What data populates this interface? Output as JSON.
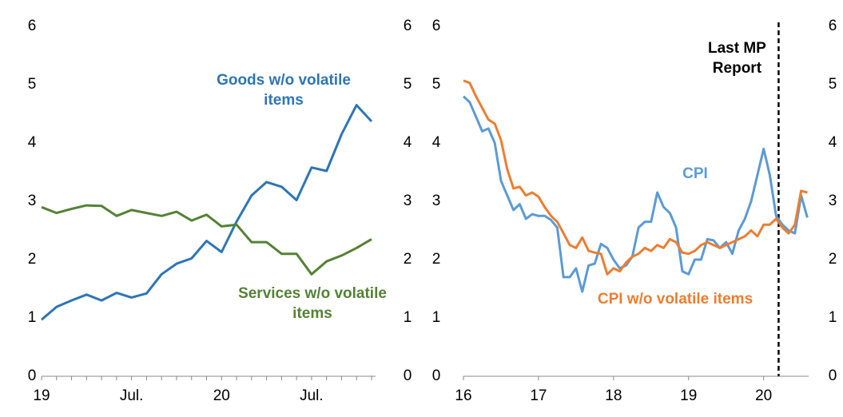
{
  "chart_data": [
    {
      "type": "line",
      "categories": [
        "19",
        null,
        null,
        null,
        null,
        null,
        "Jul.",
        null,
        null,
        null,
        null,
        null,
        "20",
        null,
        null,
        null,
        null,
        null,
        "Jul.",
        null,
        null,
        null,
        null
      ],
      "series": [
        {
          "name": "Goods w/o volatile items",
          "color": "#2e75b6",
          "values": [
            0.97,
            1.19,
            1.3,
            1.4,
            1.3,
            1.43,
            1.35,
            1.42,
            1.75,
            1.93,
            2.02,
            2.32,
            2.13,
            2.65,
            3.1,
            3.33,
            3.25,
            3.02,
            3.58,
            3.52,
            4.15,
            4.65,
            4.37
          ]
        },
        {
          "name": "Services w/o volatile items",
          "color": "#548235",
          "values": [
            2.9,
            2.8,
            2.87,
            2.93,
            2.92,
            2.75,
            2.85,
            2.8,
            2.75,
            2.82,
            2.67,
            2.77,
            2.57,
            2.6,
            2.3,
            2.3,
            2.1,
            2.1,
            1.75,
            1.97,
            2.07,
            2.2,
            2.35
          ]
        }
      ],
      "ylim": [
        0,
        6
      ],
      "yticks": [
        0,
        1,
        2,
        3,
        4,
        5,
        6
      ],
      "y2lim": [
        0,
        6
      ],
      "y2ticks": [
        0,
        1,
        2,
        3,
        4,
        5,
        6
      ]
    },
    {
      "type": "line",
      "x": [
        16,
        16.083,
        16.167,
        16.25,
        16.333,
        16.417,
        16.5,
        16.583,
        16.667,
        16.75,
        16.833,
        16.917,
        17,
        17.083,
        17.167,
        17.25,
        17.333,
        17.417,
        17.5,
        17.583,
        17.667,
        17.75,
        17.833,
        17.917,
        18,
        18.083,
        18.167,
        18.25,
        18.333,
        18.417,
        18.5,
        18.583,
        18.667,
        18.75,
        18.833,
        18.917,
        19,
        19.083,
        19.167,
        19.25,
        19.333,
        19.417,
        19.5,
        19.583,
        19.667,
        19.75,
        19.833,
        19.917,
        20,
        20.083,
        20.167,
        20.25,
        20.333,
        20.417,
        20.5,
        20.583
      ],
      "series": [
        {
          "name": "CPI",
          "color": "#5b9bd5",
          "values": [
            4.8,
            4.7,
            4.45,
            4.2,
            4.25,
            4.0,
            3.35,
            3.1,
            2.85,
            2.95,
            2.7,
            2.78,
            2.75,
            2.75,
            2.68,
            2.55,
            1.7,
            1.7,
            1.85,
            1.45,
            1.9,
            1.93,
            2.27,
            2.2,
            2.0,
            1.85,
            1.9,
            2.05,
            2.55,
            2.65,
            2.65,
            3.15,
            2.9,
            2.8,
            2.55,
            1.8,
            1.75,
            2.0,
            2.0,
            2.35,
            2.33,
            2.2,
            2.3,
            2.1,
            2.5,
            2.7,
            3.0,
            3.45,
            3.9,
            3.45,
            2.75,
            2.6,
            2.5,
            2.45,
            3.1,
            2.72
          ]
        },
        {
          "name": "CPI w/o volatile items",
          "color": "#ed7d31",
          "values": [
            5.07,
            5.03,
            4.8,
            4.6,
            4.4,
            4.33,
            4.05,
            3.55,
            3.22,
            3.25,
            3.1,
            3.15,
            3.08,
            2.9,
            2.75,
            2.65,
            2.45,
            2.25,
            2.2,
            2.38,
            2.15,
            2.12,
            2.1,
            1.75,
            1.85,
            1.8,
            1.95,
            2.05,
            2.1,
            2.2,
            2.15,
            2.25,
            2.2,
            2.35,
            2.3,
            2.12,
            2.1,
            2.15,
            2.25,
            2.3,
            2.25,
            2.2,
            2.25,
            2.3,
            2.35,
            2.4,
            2.5,
            2.4,
            2.6,
            2.6,
            2.7,
            2.55,
            2.45,
            2.6,
            3.18,
            3.15
          ]
        }
      ],
      "xlim": [
        16,
        20.6
      ],
      "xticks": [
        16,
        17,
        18,
        19,
        20
      ],
      "ylim": [
        0,
        6
      ],
      "yticks": [
        0,
        1,
        2,
        3,
        4,
        5,
        6
      ],
      "y2lim": [
        0,
        6
      ],
      "y2ticks": [
        0,
        1,
        2,
        3,
        4,
        5,
        6
      ],
      "annotation": {
        "text": "Last MP Report",
        "x": 20.2
      }
    }
  ]
}
